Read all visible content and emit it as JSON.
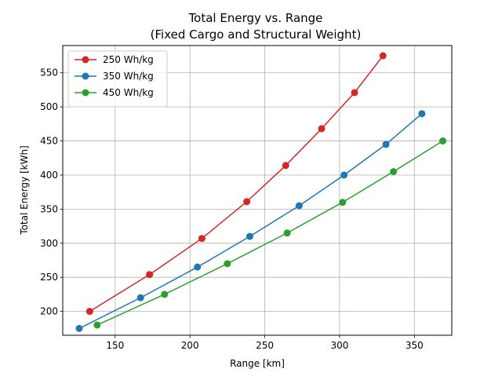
{
  "chart_data": {
    "type": "line",
    "title": "Total Energy vs. Range",
    "subtitle": "(Fixed Cargo and Structural Weight)",
    "xlabel": "Range [km]",
    "ylabel": "Total Energy [kWh]",
    "xlim": [
      115,
      375
    ],
    "ylim": [
      165,
      590
    ],
    "xticks": [
      150,
      200,
      250,
      300,
      350
    ],
    "yticks": [
      200,
      250,
      300,
      350,
      400,
      450,
      500,
      550
    ],
    "grid": true,
    "legend_position": "top-left",
    "series": [
      {
        "name": "250 Wh/kg",
        "color": "#d62728",
        "x": [
          133,
          173,
          208,
          238,
          264,
          288,
          310,
          329
        ],
        "y": [
          200,
          254,
          307,
          361,
          414,
          468,
          521,
          575
        ]
      },
      {
        "name": "350 Wh/kg",
        "color": "#1f77b4",
        "x": [
          126,
          167,
          205,
          240,
          273,
          303,
          331,
          355
        ],
        "y": [
          175,
          220,
          265,
          310,
          355,
          400,
          445,
          490
        ]
      },
      {
        "name": "450 Wh/kg",
        "color": "#2ca02c",
        "x": [
          138,
          183,
          225,
          265,
          302,
          336,
          369
        ],
        "y": [
          180,
          225,
          270,
          315,
          360,
          405,
          450
        ]
      }
    ]
  }
}
